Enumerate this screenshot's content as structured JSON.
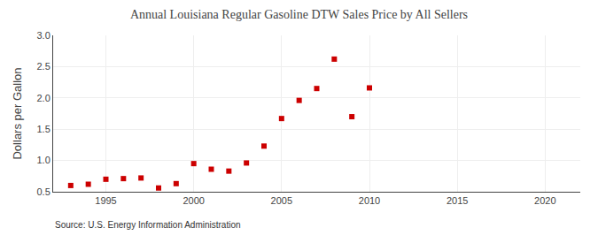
{
  "chart_data": {
    "type": "scatter",
    "title": "Annual Louisiana Regular Gasoline DTW Sales Price by All Sellers",
    "ylabel": "Dollars per Gallon",
    "annotation": "Source: U.S. Energy Information Administration",
    "x": [
      1993,
      1994,
      1995,
      1996,
      1997,
      1998,
      1999,
      2000,
      2001,
      2002,
      2003,
      2004,
      2005,
      2006,
      2007,
      2008,
      2009,
      2010
    ],
    "values": [
      0.6,
      0.62,
      0.7,
      0.71,
      0.72,
      0.56,
      0.63,
      0.95,
      0.86,
      0.83,
      0.96,
      1.23,
      1.67,
      1.96,
      2.15,
      2.62,
      1.7,
      2.16
    ],
    "color": "#cc0000",
    "marker": "square",
    "xlim": [
      1992,
      2022
    ],
    "ylim": [
      0.5,
      3.0
    ],
    "xticks": [
      1995,
      2000,
      2005,
      2010,
      2015,
      2020
    ],
    "yticks": [
      0.5,
      {
        "value": 1.0,
        "label": "1.0"
      },
      1.5,
      {
        "value": 2.0,
        "label": "2.0"
      },
      2.5,
      {
        "value": 3.0,
        "label": "3.0"
      }
    ],
    "grid": true
  }
}
